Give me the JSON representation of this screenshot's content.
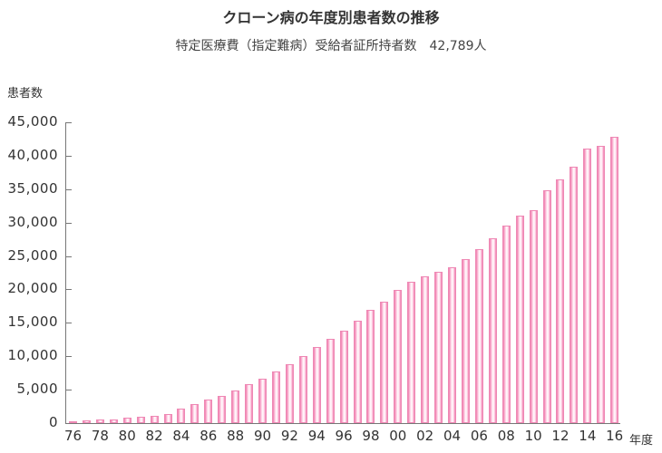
{
  "title": "クローン病の年度別患者数の推移",
  "subtitle": "特定医療費（指定難病）受給者証所持者数　42,789人",
  "chart_data": {
    "type": "bar",
    "title": "クローン病の年度別患者数の推移",
    "subtitle": "特定医療費（指定難病）受給者証所持者数　42,789人",
    "xlabel": "年度",
    "ylabel": "患者数",
    "ylim": [
      0,
      45000
    ],
    "grid": false,
    "legend": null,
    "bar_color": "#f07cad",
    "yticks": [
      "0",
      "5,000",
      "10,000",
      "15,000",
      "20,000",
      "25,000",
      "30,000",
      "35,000",
      "40,000",
      "45,000"
    ],
    "xtick_labels": [
      "76",
      "78",
      "80",
      "82",
      "84",
      "86",
      "88",
      "90",
      "92",
      "94",
      "96",
      "98",
      "00",
      "02",
      "04",
      "06",
      "08",
      "10",
      "12",
      "14",
      "16"
    ],
    "categories": [
      "76",
      "77",
      "78",
      "79",
      "80",
      "81",
      "82",
      "83",
      "84",
      "85",
      "86",
      "87",
      "88",
      "89",
      "90",
      "91",
      "92",
      "93",
      "94",
      "95",
      "96",
      "97",
      "98",
      "99",
      "00",
      "01",
      "02",
      "03",
      "04",
      "05",
      "06",
      "07",
      "08",
      "09",
      "10",
      "11",
      "12",
      "13",
      "14",
      "15",
      "16"
    ],
    "values": [
      300,
      400,
      500,
      600,
      800,
      950,
      1100,
      1300,
      2200,
      2900,
      3500,
      4000,
      4900,
      5800,
      6600,
      7700,
      8800,
      10000,
      11400,
      12600,
      13800,
      15300,
      16900,
      18100,
      19900,
      21100,
      22000,
      22600,
      23300,
      24600,
      26000,
      27600,
      29500,
      31000,
      31800,
      34900,
      36500,
      38400,
      41100,
      41500,
      42789
    ]
  }
}
